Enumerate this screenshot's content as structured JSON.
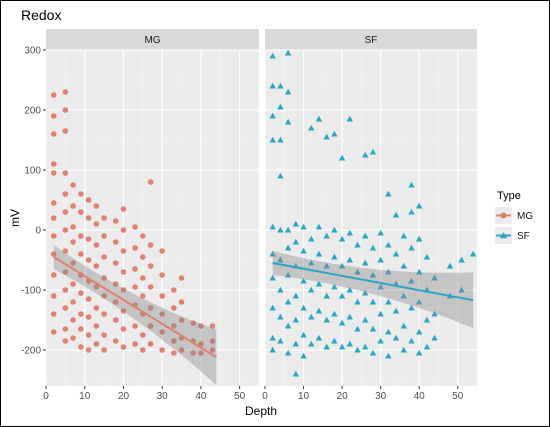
{
  "chart_data": {
    "type": "scatter",
    "title": "Redox",
    "xlabel": "Depth",
    "ylabel": "mV",
    "xlim": [
      0,
      55
    ],
    "ylim": [
      -260,
      300
    ],
    "x_ticks": [
      0,
      10,
      20,
      30,
      40,
      50
    ],
    "y_ticks": [
      -200,
      -100,
      0,
      100,
      200,
      300
    ],
    "grid": true,
    "facets": [
      "MG",
      "SF"
    ],
    "legend": {
      "title": "Type",
      "position": "right",
      "entries": [
        {
          "label": "MG",
          "color": "#e0806f",
          "shape": "circle"
        },
        {
          "label": "SF",
          "color": "#2aa6c4",
          "shape": "triangle"
        }
      ]
    },
    "series": [
      {
        "name": "MG",
        "facet": "MG",
        "color": "#e0806f",
        "marker": "circle",
        "points": [
          [
            2,
            225
          ],
          [
            2,
            190
          ],
          [
            2,
            160
          ],
          [
            2,
            110
          ],
          [
            2,
            95
          ],
          [
            2,
            45
          ],
          [
            2,
            20
          ],
          [
            2,
            -10
          ],
          [
            2,
            -40
          ],
          [
            2,
            -75
          ],
          [
            2,
            -110
          ],
          [
            2,
            -140
          ],
          [
            2,
            -170
          ],
          [
            5,
            230
          ],
          [
            5,
            200
          ],
          [
            5,
            165
          ],
          [
            5,
            95
          ],
          [
            5,
            60
          ],
          [
            5,
            30
          ],
          [
            5,
            0
          ],
          [
            5,
            -35
          ],
          [
            5,
            -70
          ],
          [
            5,
            -100
          ],
          [
            5,
            -130
          ],
          [
            5,
            -165
          ],
          [
            5,
            -185
          ],
          [
            7,
            75
          ],
          [
            7,
            40
          ],
          [
            7,
            5
          ],
          [
            7,
            -20
          ],
          [
            7,
            -55
          ],
          [
            7,
            -90
          ],
          [
            7,
            -120
          ],
          [
            7,
            -150
          ],
          [
            7,
            -180
          ],
          [
            9,
            60
          ],
          [
            9,
            30
          ],
          [
            9,
            -10
          ],
          [
            9,
            -40
          ],
          [
            9,
            -75
          ],
          [
            9,
            -105
          ],
          [
            9,
            -140
          ],
          [
            9,
            -165
          ],
          [
            9,
            -195
          ],
          [
            11,
            50
          ],
          [
            11,
            20
          ],
          [
            11,
            -15
          ],
          [
            11,
            -50
          ],
          [
            11,
            -85
          ],
          [
            11,
            -115
          ],
          [
            11,
            -145
          ],
          [
            11,
            -175
          ],
          [
            11,
            -200
          ],
          [
            13,
            40
          ],
          [
            13,
            10
          ],
          [
            13,
            -25
          ],
          [
            13,
            -60
          ],
          [
            13,
            -95
          ],
          [
            13,
            -130
          ],
          [
            13,
            -160
          ],
          [
            13,
            -190
          ],
          [
            15,
            20
          ],
          [
            15,
            -10
          ],
          [
            15,
            -45
          ],
          [
            15,
            -80
          ],
          [
            15,
            -110
          ],
          [
            15,
            -140
          ],
          [
            15,
            -175
          ],
          [
            15,
            -200
          ],
          [
            18,
            15
          ],
          [
            18,
            -20
          ],
          [
            18,
            -55
          ],
          [
            18,
            -90
          ],
          [
            18,
            -120
          ],
          [
            18,
            -150
          ],
          [
            18,
            -185
          ],
          [
            20,
            35
          ],
          [
            20,
            0
          ],
          [
            20,
            -35
          ],
          [
            20,
            -70
          ],
          [
            20,
            -100
          ],
          [
            20,
            -135
          ],
          [
            20,
            -165
          ],
          [
            20,
            -195
          ],
          [
            23,
            5
          ],
          [
            23,
            -30
          ],
          [
            23,
            -65
          ],
          [
            23,
            -95
          ],
          [
            23,
            -125
          ],
          [
            23,
            -160
          ],
          [
            23,
            -190
          ],
          [
            25,
            -10
          ],
          [
            25,
            -45
          ],
          [
            25,
            -80
          ],
          [
            25,
            -110
          ],
          [
            25,
            -140
          ],
          [
            25,
            -175
          ],
          [
            25,
            -200
          ],
          [
            27,
            80
          ],
          [
            27,
            -25
          ],
          [
            27,
            -60
          ],
          [
            27,
            -95
          ],
          [
            27,
            -130
          ],
          [
            27,
            -160
          ],
          [
            27,
            -190
          ],
          [
            30,
            -35
          ],
          [
            30,
            -75
          ],
          [
            30,
            -110
          ],
          [
            30,
            -140
          ],
          [
            30,
            -170
          ],
          [
            30,
            -200
          ],
          [
            33,
            -100
          ],
          [
            33,
            -130
          ],
          [
            33,
            -160
          ],
          [
            33,
            -185
          ],
          [
            33,
            -205
          ],
          [
            35,
            -80
          ],
          [
            35,
            -120
          ],
          [
            35,
            -150
          ],
          [
            35,
            -180
          ],
          [
            35,
            -200
          ],
          [
            38,
            -155
          ],
          [
            38,
            -185
          ],
          [
            38,
            -205
          ],
          [
            40,
            -160
          ],
          [
            40,
            -190
          ],
          [
            40,
            -205
          ],
          [
            43,
            -160
          ],
          [
            43,
            -185
          ],
          [
            43,
            -200
          ]
        ],
        "trend": {
          "x": [
            2,
            44
          ],
          "y": [
            -45,
            -212
          ],
          "ci_start": 12,
          "ci_end": 28
        }
      },
      {
        "name": "SF",
        "facet": "SF",
        "color": "#2aa6c4",
        "marker": "triangle",
        "points": [
          [
            2,
            290
          ],
          [
            2,
            240
          ],
          [
            2,
            190
          ],
          [
            2,
            150
          ],
          [
            2,
            5
          ],
          [
            2,
            -40
          ],
          [
            2,
            -80
          ],
          [
            2,
            -130
          ],
          [
            2,
            -180
          ],
          [
            2,
            -200
          ],
          [
            4,
            240
          ],
          [
            4,
            205
          ],
          [
            4,
            150
          ],
          [
            4,
            90
          ],
          [
            4,
            0
          ],
          [
            4,
            -50
          ],
          [
            4,
            -100
          ],
          [
            4,
            -145
          ],
          [
            4,
            -185
          ],
          [
            6,
            295
          ],
          [
            6,
            230
          ],
          [
            6,
            180
          ],
          [
            6,
            0
          ],
          [
            6,
            -30
          ],
          [
            6,
            -75
          ],
          [
            6,
            -120
          ],
          [
            6,
            -160
          ],
          [
            6,
            -205
          ],
          [
            8,
            10
          ],
          [
            8,
            -20
          ],
          [
            8,
            -60
          ],
          [
            8,
            -110
          ],
          [
            8,
            -150
          ],
          [
            8,
            -190
          ],
          [
            8,
            -240
          ],
          [
            10,
            5
          ],
          [
            10,
            -35
          ],
          [
            10,
            -85
          ],
          [
            10,
            -130
          ],
          [
            10,
            -175
          ],
          [
            10,
            -210
          ],
          [
            12,
            170
          ],
          [
            12,
            -15
          ],
          [
            12,
            -55
          ],
          [
            12,
            -100
          ],
          [
            12,
            -145
          ],
          [
            12,
            -190
          ],
          [
            14,
            185
          ],
          [
            14,
            5
          ],
          [
            14,
            -40
          ],
          [
            14,
            -90
          ],
          [
            14,
            -135
          ],
          [
            14,
            -180
          ],
          [
            16,
            155
          ],
          [
            16,
            -10
          ],
          [
            16,
            -60
          ],
          [
            16,
            -110
          ],
          [
            16,
            -150
          ],
          [
            16,
            -195
          ],
          [
            18,
            160
          ],
          [
            18,
            0
          ],
          [
            18,
            -45
          ],
          [
            18,
            -95
          ],
          [
            18,
            -140
          ],
          [
            18,
            -185
          ],
          [
            20,
            120
          ],
          [
            20,
            -15
          ],
          [
            20,
            -60
          ],
          [
            20,
            -110
          ],
          [
            20,
            -155
          ],
          [
            20,
            -195
          ],
          [
            22,
            185
          ],
          [
            22,
            -5
          ],
          [
            22,
            -50
          ],
          [
            22,
            -100
          ],
          [
            22,
            -145
          ],
          [
            22,
            -190
          ],
          [
            24,
            -25
          ],
          [
            24,
            -70
          ],
          [
            24,
            -120
          ],
          [
            24,
            -165
          ],
          [
            24,
            -200
          ],
          [
            26,
            125
          ],
          [
            26,
            -10
          ],
          [
            26,
            -55
          ],
          [
            26,
            -105
          ],
          [
            26,
            -150
          ],
          [
            26,
            -195
          ],
          [
            28,
            130
          ],
          [
            28,
            -30
          ],
          [
            28,
            -75
          ],
          [
            28,
            -120
          ],
          [
            28,
            -165
          ],
          [
            28,
            -205
          ],
          [
            30,
            -5
          ],
          [
            30,
            -50
          ],
          [
            30,
            -95
          ],
          [
            30,
            -140
          ],
          [
            30,
            -185
          ],
          [
            32,
            60
          ],
          [
            32,
            -25
          ],
          [
            32,
            -70
          ],
          [
            32,
            -120
          ],
          [
            32,
            -170
          ],
          [
            32,
            -210
          ],
          [
            34,
            25
          ],
          [
            34,
            -40
          ],
          [
            34,
            -90
          ],
          [
            34,
            -135
          ],
          [
            34,
            -180
          ],
          [
            36,
            -10
          ],
          [
            36,
            -60
          ],
          [
            36,
            -110
          ],
          [
            36,
            -160
          ],
          [
            36,
            -200
          ],
          [
            38,
            75
          ],
          [
            38,
            30
          ],
          [
            38,
            -30
          ],
          [
            38,
            -85
          ],
          [
            38,
            -130
          ],
          [
            38,
            -185
          ],
          [
            40,
            40
          ],
          [
            40,
            -15
          ],
          [
            40,
            -70
          ],
          [
            40,
            -120
          ],
          [
            40,
            -170
          ],
          [
            40,
            -205
          ],
          [
            42,
            -45
          ],
          [
            42,
            -100
          ],
          [
            42,
            -150
          ],
          [
            42,
            -195
          ],
          [
            44,
            -80
          ],
          [
            44,
            -140
          ],
          [
            44,
            -180
          ],
          [
            48,
            -60
          ],
          [
            48,
            -110
          ],
          [
            51,
            -50
          ],
          [
            51,
            -100
          ],
          [
            54,
            -40
          ]
        ],
        "trend": {
          "x": [
            2,
            54
          ],
          "y": [
            -55,
            -117
          ],
          "ci_start": 12,
          "ci_end": 28
        }
      }
    ]
  }
}
